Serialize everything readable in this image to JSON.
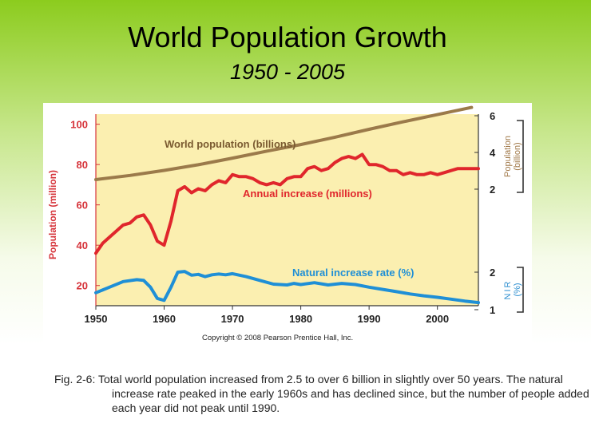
{
  "slide": {
    "title": "World Population Growth",
    "subtitle": "1950 - 2005",
    "caption": "Fig. 2-6: Total world population increased from 2.5 to over 6 billion in slightly over 50 years. The natural increase rate peaked in the early 1960s and has declined since, but the number of people added each year did not peak until 1990."
  },
  "colors": {
    "plot_bg": "#fbefb0",
    "world_pop": "#9b7a4a",
    "annual_increase": "#e0262c",
    "nir": "#1f8fd6",
    "left_axis": "#d6333a",
    "right_axis": "#a07848",
    "nir_axis": "#2e8fd0"
  },
  "chart_data": {
    "type": "line",
    "copyright": "Copyright © 2008 Pearson Prentice Hall, Inc.",
    "x_ticks": [
      1950,
      1960,
      1970,
      1980,
      1990,
      2000
    ],
    "xlim": [
      1950,
      2006
    ],
    "left_axis": {
      "label": "Population (million)",
      "ticks": [
        20,
        40,
        60,
        80,
        100
      ],
      "ylim": [
        10,
        105
      ]
    },
    "right_axis_population": {
      "label": "Population",
      "unit": "(billion)",
      "ticks": [
        2,
        4,
        6
      ]
    },
    "right_axis_nir": {
      "label": "NIR",
      "unit": "(%)",
      "ticks": [
        1,
        2
      ]
    },
    "series": [
      {
        "name": "World population (billions)",
        "axis": "population",
        "points": [
          [
            1950,
            2.52
          ],
          [
            1955,
            2.75
          ],
          [
            1960,
            3.02
          ],
          [
            1965,
            3.33
          ],
          [
            1970,
            3.69
          ],
          [
            1975,
            4.07
          ],
          [
            1980,
            4.43
          ],
          [
            1985,
            4.83
          ],
          [
            1990,
            5.26
          ],
          [
            1995,
            5.67
          ],
          [
            2000,
            6.06
          ],
          [
            2005,
            6.45
          ]
        ]
      },
      {
        "name": "Annual increase (millions)",
        "axis": "left",
        "points": [
          [
            1950,
            36
          ],
          [
            1951,
            41
          ],
          [
            1952,
            44
          ],
          [
            1953,
            47
          ],
          [
            1954,
            50
          ],
          [
            1955,
            51
          ],
          [
            1956,
            54
          ],
          [
            1957,
            55
          ],
          [
            1958,
            50
          ],
          [
            1959,
            42
          ],
          [
            1960,
            40
          ],
          [
            1961,
            52
          ],
          [
            1962,
            67
          ],
          [
            1963,
            69
          ],
          [
            1964,
            66
          ],
          [
            1965,
            68
          ],
          [
            1966,
            67
          ],
          [
            1967,
            70
          ],
          [
            1968,
            72
          ],
          [
            1969,
            71
          ],
          [
            1970,
            75
          ],
          [
            1971,
            74
          ],
          [
            1972,
            74
          ],
          [
            1973,
            73
          ],
          [
            1974,
            71
          ],
          [
            1975,
            70
          ],
          [
            1976,
            71
          ],
          [
            1977,
            70
          ],
          [
            1978,
            73
          ],
          [
            1979,
            74
          ],
          [
            1980,
            74
          ],
          [
            1981,
            78
          ],
          [
            1982,
            79
          ],
          [
            1983,
            77
          ],
          [
            1984,
            78
          ],
          [
            1985,
            81
          ],
          [
            1986,
            83
          ],
          [
            1987,
            84
          ],
          [
            1988,
            83
          ],
          [
            1989,
            85
          ],
          [
            1990,
            80
          ],
          [
            1991,
            80
          ],
          [
            1992,
            79
          ],
          [
            1993,
            77
          ],
          [
            1994,
            77
          ],
          [
            1995,
            75
          ],
          [
            1996,
            76
          ],
          [
            1997,
            75
          ],
          [
            1998,
            75
          ],
          [
            1999,
            76
          ],
          [
            2000,
            75
          ],
          [
            2001,
            76
          ],
          [
            2002,
            77
          ],
          [
            2003,
            78
          ],
          [
            2004,
            78
          ],
          [
            2005,
            78
          ],
          [
            2006,
            78
          ]
        ]
      },
      {
        "name": "Natural increase rate (%)",
        "axis": "nir",
        "points": [
          [
            1950,
            1.45
          ],
          [
            1952,
            1.6
          ],
          [
            1954,
            1.75
          ],
          [
            1956,
            1.8
          ],
          [
            1957,
            1.78
          ],
          [
            1958,
            1.6
          ],
          [
            1959,
            1.3
          ],
          [
            1960,
            1.25
          ],
          [
            1961,
            1.6
          ],
          [
            1962,
            2.0
          ],
          [
            1963,
            2.02
          ],
          [
            1964,
            1.92
          ],
          [
            1965,
            1.94
          ],
          [
            1966,
            1.88
          ],
          [
            1967,
            1.93
          ],
          [
            1968,
            1.95
          ],
          [
            1969,
            1.93
          ],
          [
            1970,
            1.96
          ],
          [
            1972,
            1.88
          ],
          [
            1974,
            1.78
          ],
          [
            1976,
            1.68
          ],
          [
            1978,
            1.66
          ],
          [
            1979,
            1.7
          ],
          [
            1980,
            1.67
          ],
          [
            1982,
            1.72
          ],
          [
            1984,
            1.66
          ],
          [
            1986,
            1.7
          ],
          [
            1988,
            1.67
          ],
          [
            1990,
            1.6
          ],
          [
            1992,
            1.54
          ],
          [
            1994,
            1.48
          ],
          [
            1996,
            1.42
          ],
          [
            1998,
            1.37
          ],
          [
            2000,
            1.33
          ],
          [
            2002,
            1.28
          ],
          [
            2004,
            1.23
          ],
          [
            2006,
            1.19
          ]
        ]
      }
    ]
  }
}
